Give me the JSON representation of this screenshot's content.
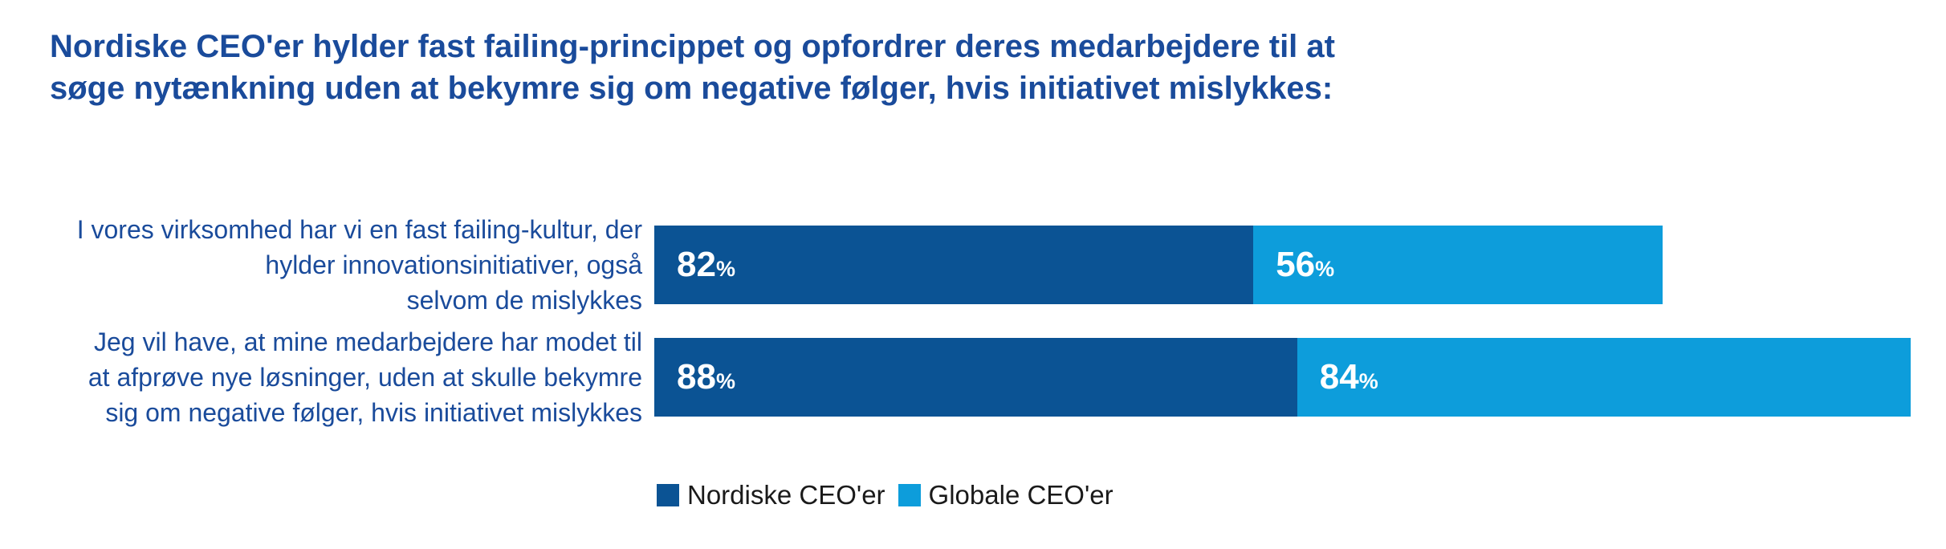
{
  "colors": {
    "background": "#FFFFFF",
    "title_text": "#1A4B9B",
    "label_text": "#1A4B9B",
    "nordic_blue": "#0B5394",
    "global_blue": "#0D9DDB",
    "value_text": "#FFFFFF",
    "legend_text": "#1A1A1A"
  },
  "chart_data": {
    "type": "bar",
    "orientation": "horizontal_stacked",
    "title": "Nordiske CEO'er hylder fast failing-princippet og opfordrer deres medarbejdere til at\nsøge nytænkning uden at bekymre sig om negative følger, hvis initiativet mislykkes:",
    "categories": [
      "I vores virksomhed har vi en fast failing-kultur, der\nhylder innovationsinitiativer, også\nselvom de mislykkes",
      "Jeg vil have, at mine medarbejdere har modet til\nat afprøve nye løsninger, uden at skulle bekymre\nsig om negative følger, hvis initiativet mislykkes"
    ],
    "series": [
      {
        "name": "Nordiske CEO'er",
        "color": "#0B5394",
        "values": [
          82,
          88
        ]
      },
      {
        "name": "Globale CEO'er",
        "color": "#0D9DDB",
        "values": [
          56,
          84
        ]
      }
    ],
    "value_unit": "%",
    "value_labels": [
      "82%",
      "56%",
      "88%",
      "84%"
    ],
    "xlim": [
      0,
      172
    ],
    "grid": false,
    "axes_visible": false,
    "legend_position": "bottom"
  }
}
